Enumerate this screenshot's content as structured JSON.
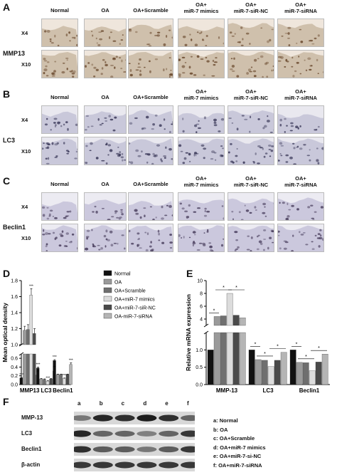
{
  "panels": {
    "A": {
      "letter": "A",
      "marker": "MMP13",
      "columns": [
        "Normal",
        "OA",
        "OA+Scramble",
        "OA+\nmiR-7 mimics",
        "OA+\nmiR-7-siR-NC",
        "OA+\nmiR-7-siRNA"
      ],
      "rows": [
        "X4",
        "X10"
      ]
    },
    "B": {
      "letter": "B",
      "marker": "LC3",
      "columns": [
        "Normal",
        "OA",
        "OA+Scramble",
        "OA+\nmiR-7 mimics",
        "OA+\nmiR-7-siR-NC",
        "OA+\nmiR-7-siRNA"
      ],
      "rows": [
        "X4",
        "X10"
      ]
    },
    "C": {
      "letter": "C",
      "marker": "Beclin1",
      "columns": [
        "Normal",
        "OA",
        "OA+Scramble",
        "OA+\nmiR-7 mimics",
        "OA+\nmiR-7-siR-NC",
        "OA+\nmiR-7-siRNA"
      ],
      "rows": [
        "X4",
        "X10"
      ]
    }
  },
  "chart_data": [
    {
      "panel": "D",
      "type": "bar",
      "ylabel": "Mean optical density",
      "categories": [
        "MMP13",
        "LC3",
        "Beclin1"
      ],
      "y_ticks_lower": [
        "0.0",
        "0.2",
        "0.4",
        "0.6"
      ],
      "y_ticks_upper": [
        "1.0",
        "1.2",
        "1.4",
        "1.6",
        "1.8"
      ],
      "ylim_lower": [
        0,
        0.7
      ],
      "ylim_upper": [
        1.0,
        1.8
      ],
      "series": [
        {
          "name": "Normal",
          "color": "#111111",
          "values": [
            0.15,
            0.38,
            0.55
          ],
          "err": [
            0.01,
            0.02,
            0.02
          ]
        },
        {
          "name": "OA",
          "color": "#9a9a9a",
          "values": [
            1.18,
            0.13,
            0.23
          ],
          "err": [
            0.05,
            0.01,
            0.01
          ]
        },
        {
          "name": "OA+Scramble",
          "color": "#6f6f6f",
          "values": [
            1.19,
            0.12,
            0.23
          ],
          "err": [
            0.06,
            0.01,
            0.01
          ]
        },
        {
          "name": "OA+miR-7 mimics",
          "color": "#dcdcdc",
          "values": [
            1.62,
            0.08,
            0.14
          ],
          "err": [
            0.08,
            0.01,
            0.01
          ]
        },
        {
          "name": "OA+miR-7-siR-NC",
          "color": "#4a4a4a",
          "values": [
            1.14,
            0.13,
            0.23
          ],
          "err": [
            0.06,
            0.01,
            0.01
          ]
        },
        {
          "name": "OA-miR-7-siRNA",
          "color": "#b5b5b5",
          "values": [
            0.22,
            0.31,
            0.46
          ],
          "err": [
            0.01,
            0.02,
            0.04
          ]
        }
      ],
      "annotations": [
        "***",
        "***",
        "**",
        "***",
        "***",
        "**",
        "***",
        "***",
        "***",
        "***"
      ]
    },
    {
      "panel": "E",
      "type": "bar",
      "ylabel": "Relative mRNA expression",
      "categories": [
        "MMP-13",
        "LC3",
        "Beclin1"
      ],
      "y_ticks_lower": [
        "0.0",
        "0.5",
        "1.0"
      ],
      "y_ticks_upper": [
        "4",
        "6",
        "8",
        "10"
      ],
      "ylim_lower": [
        0,
        1.5
      ],
      "ylim_upper": [
        3,
        10
      ],
      "series": [
        {
          "name": "Normal",
          "color": "#111111",
          "values": [
            1.0,
            1.0,
            1.0
          ]
        },
        {
          "name": "OA",
          "color": "#9a9a9a",
          "values": [
            4.4,
            0.72,
            0.64
          ]
        },
        {
          "name": "OA+Scramble",
          "color": "#6f6f6f",
          "values": [
            4.5,
            0.7,
            0.63
          ]
        },
        {
          "name": "OA+miR-7 mimics",
          "color": "#dcdcdc",
          "values": [
            8.0,
            0.52,
            0.4
          ]
        },
        {
          "name": "OA+miR-7-siR-NC",
          "color": "#4a4a4a",
          "values": [
            4.6,
            0.7,
            0.65
          ]
        },
        {
          "name": "OA-miR-7-siRNA",
          "color": "#b5b5b5",
          "values": [
            4.2,
            0.93,
            0.88
          ]
        }
      ],
      "annotations": [
        "*",
        "*",
        "*",
        "*",
        "*",
        "*",
        "*",
        "*",
        "*"
      ]
    }
  ],
  "westernF": {
    "letter": "F",
    "lanes": [
      "a",
      "b",
      "c",
      "d",
      "e",
      "f"
    ],
    "proteins": [
      "MMP-13",
      "LC3",
      "Beclin1",
      "β-actin"
    ],
    "key": [
      "a: Normal",
      "b: OA",
      "c: OA+Scramble",
      "d: OA+miR-7 mimics",
      "e: OA+miR-7-si-NC",
      "f: OA+miR-7-siRNA"
    ],
    "intensity": [
      [
        0.45,
        0.9,
        0.85,
        0.95,
        0.85,
        0.55
      ],
      [
        0.9,
        0.55,
        0.55,
        0.4,
        0.55,
        0.8
      ],
      [
        0.85,
        0.6,
        0.6,
        0.45,
        0.6,
        0.8
      ],
      [
        0.8,
        0.8,
        0.8,
        0.8,
        0.8,
        0.8
      ]
    ]
  },
  "panelLabels": {
    "D": "D",
    "E": "E"
  }
}
